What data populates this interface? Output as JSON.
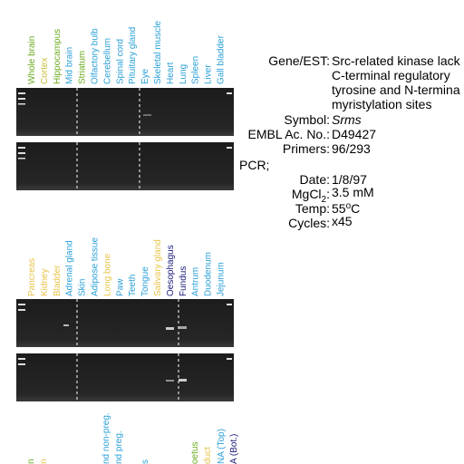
{
  "panels": [
    {
      "lanes": [
        {
          "label": "Whole brain",
          "color": "#6aaa1e"
        },
        {
          "label": "Cortex",
          "color": "#c9bd3c"
        },
        {
          "label": "Hippocampus",
          "color": "#6aaa1e"
        },
        {
          "label": "Mid brain",
          "color": "#2aa0d8"
        },
        {
          "label": "Striatum",
          "color": "#6aaa1e"
        },
        {
          "label": "Olfactory bulb",
          "color": "#2aa0d8"
        },
        {
          "label": "Cerebellum",
          "color": "#2aa0d8"
        },
        {
          "label": "Spinal cord",
          "color": "#2aa0d8"
        },
        {
          "label": "Pituitary gland",
          "color": "#2aa0d8"
        },
        {
          "label": "Eye",
          "color": "#2aa0d8"
        },
        {
          "label": "Skeletal muscle",
          "color": "#2aa0d8"
        },
        {
          "label": "Heart",
          "color": "#2aa0d8"
        },
        {
          "label": "Lung",
          "color": "#2aa0d8"
        },
        {
          "label": "Spleen",
          "color": "#2aa0d8"
        },
        {
          "label": "Liver",
          "color": "#2aa0d8"
        },
        {
          "label": "Gall bladder",
          "color": "#2aa0d8"
        }
      ]
    },
    {
      "lanes": [
        {
          "label": "Pancreas",
          "color": "#e8c44a"
        },
        {
          "label": "Kidney",
          "color": "#e8c44a"
        },
        {
          "label": "Bladder",
          "color": "#e8c44a"
        },
        {
          "label": "Adrenal gland",
          "color": "#2aa0d8"
        },
        {
          "label": "Skin",
          "color": "#2aa0d8"
        },
        {
          "label": "Adipose tissue",
          "color": "#2aa0d8"
        },
        {
          "label": "Long bone",
          "color": "#e8c44a"
        },
        {
          "label": "Paw",
          "color": "#2aa0d8"
        },
        {
          "label": "Teeth",
          "color": "#2aa0d8"
        },
        {
          "label": "Tongue",
          "color": "#2aa0d8"
        },
        {
          "label": "Salivary gland",
          "color": "#e8c44a"
        },
        {
          "label": "Oesophagus",
          "color": "#1a1a7a"
        },
        {
          "label": "Fundus",
          "color": "#1a1a7a"
        },
        {
          "label": "Antrum",
          "color": "#2aa0d8"
        },
        {
          "label": "Duodenum",
          "color": "#2aa0d8"
        },
        {
          "label": "Jejunum",
          "color": "#2aa0d8"
        }
      ]
    }
  ],
  "cut_labels": [
    {
      "label": "n",
      "color": "#6aaa1e"
    },
    {
      "label": "n",
      "color": "#e8c44a"
    },
    {
      "label": "nd non-preg.",
      "color": "#2aa0d8"
    },
    {
      "label": "nd preg.",
      "color": "#2aa0d8"
    },
    {
      "label": "s",
      "color": "#2aa0d8"
    },
    {
      "label": "oetus",
      "color": "#6aaa1e"
    },
    {
      "label": "duct",
      "color": "#e8c44a"
    },
    {
      "label": "NA (Top)",
      "color": "#2aa0d8"
    },
    {
      "label": "A (Bot.)",
      "color": "#1a1a7a"
    }
  ],
  "info": {
    "gene_label": "Gene/EST:",
    "gene_lines": [
      "Src-related kinase lack",
      "C-terminal regulatory",
      "tyrosine and N-termina",
      "myristylation sites"
    ],
    "symbol_label": "Symbol:",
    "symbol": "Srms",
    "embl_label": "EMBL Ac. No.:",
    "embl": "D49427",
    "primers_label": "Primers:",
    "primers": "96/293",
    "pcr_label": "PCR;",
    "date_label": "Date:",
    "date": "1/8/97",
    "mgcl_label": "MgCl",
    "mgcl_sub": "2",
    "mgcl_colon": ":",
    "mgcl": "3.5 mM",
    "temp_label": "Temp:",
    "temp_value": "55",
    "temp_sup": "o",
    "temp_unit": "C",
    "cycles_label": "Cycles:",
    "cycles": "x45"
  }
}
